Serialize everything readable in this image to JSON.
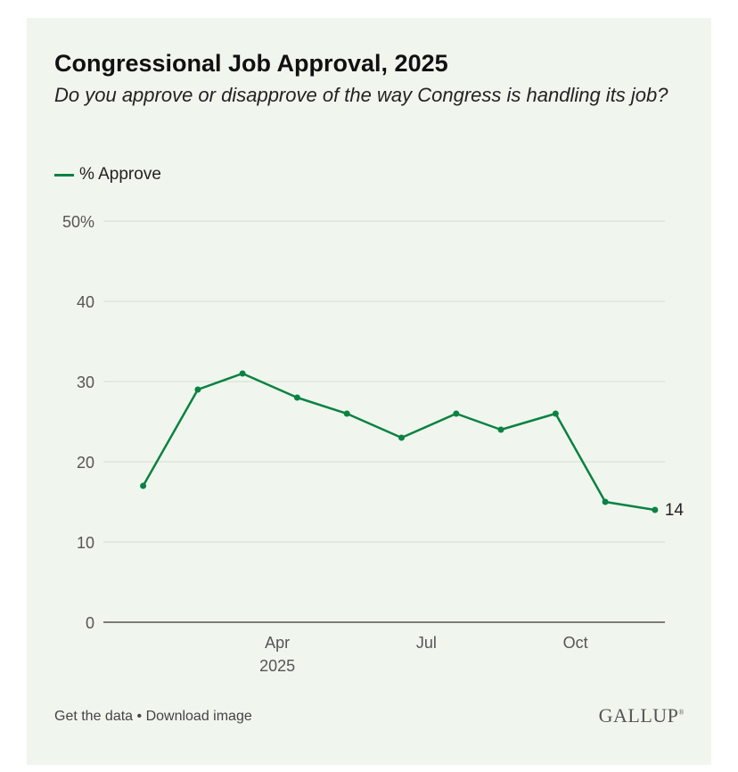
{
  "title": "Congressional Job Approval, 2025",
  "subtitle": "Do you approve or disapprove of the way Congress is handling its job?",
  "legend": {
    "label": "% Approve"
  },
  "footer": {
    "get_data": "Get the data",
    "separator": " • ",
    "download": "Download image"
  },
  "logo": {
    "text": "GALLUP",
    "mark": "®"
  },
  "colors": {
    "line": "#0a8241",
    "grid": "#d6dcd4",
    "axis": "#333333",
    "tick_text": "#555555",
    "background": "#f0f6ee"
  },
  "chart_data": {
    "type": "line",
    "title": "Congressional Job Approval, 2025",
    "xlabel": "",
    "ylabel": "% Approve",
    "ylim": [
      0,
      50
    ],
    "yticks": [
      0,
      10,
      20,
      30,
      40,
      50
    ],
    "ytick_labels": [
      "0",
      "10",
      "20",
      "30",
      "40",
      "50%"
    ],
    "xlim": [
      0.5,
      11.8
    ],
    "xticks": [
      {
        "value": 4,
        "label": "Apr",
        "sublabel": "2025"
      },
      {
        "value": 7,
        "label": "Jul",
        "sublabel": ""
      },
      {
        "value": 10,
        "label": "Oct",
        "sublabel": ""
      }
    ],
    "series": [
      {
        "name": "% Approve",
        "x": [
          1.3,
          2.4,
          3.3,
          4.4,
          5.4,
          6.5,
          7.6,
          8.5,
          9.6,
          10.6,
          11.6
        ],
        "values": [
          17,
          29,
          31,
          28,
          26,
          23,
          26,
          24,
          26,
          15,
          14
        ]
      }
    ],
    "end_label": "14"
  }
}
